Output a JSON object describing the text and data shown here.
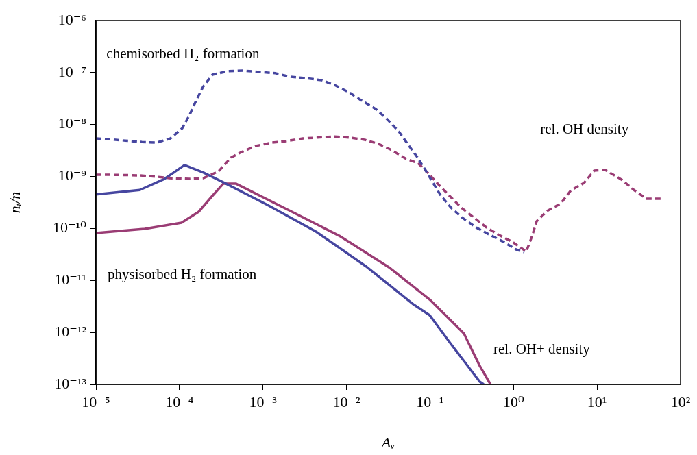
{
  "chart_data": {
    "type": "line",
    "xlabel": "Aᵥ",
    "ylabel": "nᵢ/n",
    "log": "xy",
    "legend": false,
    "xlim": [
      1e-05,
      100
    ],
    "ylim": [
      1e-13,
      1e-06
    ],
    "xticks": [
      {
        "value": 1e-05,
        "label": "10⁻⁵"
      },
      {
        "value": 0.0001,
        "label": "10⁻⁴"
      },
      {
        "value": 0.001,
        "label": "10⁻³"
      },
      {
        "value": 0.01,
        "label": "10⁻²"
      },
      {
        "value": 0.1,
        "label": "10⁻¹"
      },
      {
        "value": 1,
        "label": "10⁰"
      },
      {
        "value": 10,
        "label": "10¹"
      },
      {
        "value": 100,
        "label": "10²"
      }
    ],
    "yticks": [
      {
        "value": 1e-13,
        "label": "10⁻¹³"
      },
      {
        "value": 1e-12,
        "label": "10⁻¹²"
      },
      {
        "value": 1e-11,
        "label": "10⁻¹¹"
      },
      {
        "value": 1e-10,
        "label": "10⁻¹⁰"
      },
      {
        "value": 1e-09,
        "label": "10⁻⁹"
      },
      {
        "value": 1e-08,
        "label": "10⁻⁸"
      },
      {
        "value": 1e-07,
        "label": "10⁻⁷"
      },
      {
        "value": 1e-06,
        "label": "10⁻⁶"
      }
    ],
    "annotations": [
      "chemisorbed H₂ formation",
      "physisorbed H₂ formation",
      "rel. OH density",
      "rel. OH+ density"
    ],
    "series": [
      {
        "color": "#4646a0",
        "line_style": "dashed",
        "x": [
          1e-05,
          1.46e-05,
          2.25e-05,
          3.55e-05,
          5.37e-05,
          7.8e-05,
          0.000108,
          0.000133,
          0.000158,
          0.000191,
          0.000248,
          0.000377,
          0.000581,
          0.000897,
          0.00141,
          0.0021,
          0.0033,
          0.00511,
          0.00745,
          0.0109,
          0.0153,
          0.0223,
          0.0308,
          0.0424,
          0.0542,
          0.0692,
          0.0869,
          0.109,
          0.134,
          0.178,
          0.245,
          0.358,
          0.524,
          0.764,
          1.07,
          1.35
        ],
        "values": [
          5.4e-09,
          5.2e-09,
          4.9e-09,
          4.6e-09,
          4.5e-09,
          5.4e-09,
          8.5e-09,
          1.56e-08,
          2.87e-08,
          5.26e-08,
          9.1e-08,
          1.06e-07,
          1.09e-07,
          1.03e-07,
          9.7e-08,
          8.3e-08,
          7.8e-08,
          7.1e-08,
          5.6e-08,
          4.1e-08,
          2.87e-08,
          2e-08,
          1.26e-08,
          7.3e-09,
          4.2e-09,
          2.45e-09,
          1.38e-09,
          7.5e-10,
          4.35e-10,
          2.52e-10,
          1.6e-10,
          1.04e-10,
          7.5e-11,
          5.5e-11,
          3.95e-11,
          3.5e-11
        ]
      },
      {
        "color": "#9a3c74",
        "line_style": "dashed",
        "x": [
          1e-05,
          1.49e-05,
          3.35e-05,
          5.37e-05,
          7.55e-05,
          0.000131,
          0.000194,
          0.000294,
          0.000414,
          0.00055,
          0.000817,
          0.00129,
          0.00191,
          0.00301,
          0.00448,
          0.00703,
          0.0109,
          0.0165,
          0.0245,
          0.0338,
          0.0521,
          0.0719,
          0.0955,
          0.132,
          0.175,
          0.237,
          0.339,
          0.476,
          0.668,
          0.975,
          1.42,
          1.66,
          1.89,
          2.51,
          3.66,
          4.86,
          6.97,
          9.25,
          12.5,
          19.7,
          27.7,
          38.9,
          58.9
        ],
        "values": [
          1.08e-09,
          1.08e-09,
          1.05e-09,
          9.9e-10,
          9.3e-10,
          9e-10,
          9.3e-10,
          1.26e-09,
          2.31e-09,
          2.94e-09,
          3.87e-09,
          4.5e-09,
          4.8e-09,
          5.4e-09,
          5.6e-09,
          5.9e-09,
          5.6e-09,
          5.1e-09,
          4.2e-09,
          3.3e-09,
          2.17e-09,
          1.81e-09,
          1.15e-09,
          6.5e-10,
          4.1e-10,
          2.52e-10,
          1.6e-10,
          1.04e-10,
          7.5e-11,
          5.5e-11,
          3.6e-11,
          7e-11,
          1.37e-10,
          2.16e-10,
          3e-10,
          5.4e-10,
          7.5e-10,
          1.3e-09,
          1.34e-09,
          8.7e-10,
          5.5e-10,
          3.74e-10,
          3.74e-10
        ]
      },
      {
        "color": "#4646a0",
        "line_style": "solid",
        "x": [
          1e-05,
          3.35e-05,
          6.62e-05,
          0.000115,
          0.000194,
          0.000336,
          0.00113,
          0.00431,
          0.0168,
          0.0643,
          0.099,
          0.178,
          0.394,
          0.44
        ],
        "values": [
          4.5e-10,
          5.5e-10,
          9e-10,
          1.66e-09,
          1.19e-09,
          7.7e-10,
          2.84e-10,
          8.7e-11,
          1.91e-11,
          3.4e-12,
          2.15e-12,
          6e-13,
          1.13e-13,
          1e-13
        ]
      },
      {
        "color": "#9a3c74",
        "line_style": "solid",
        "x": [
          1e-05,
          3.83e-05,
          0.000106,
          0.00017,
          0.000239,
          0.000336,
          0.000472,
          0.00222,
          0.00851,
          0.0331,
          0.099,
          0.255,
          0.394,
          0.53
        ],
        "values": [
          8.2e-11,
          9.8e-11,
          1.29e-10,
          2.1e-10,
          3.97e-10,
          7.3e-10,
          7.3e-10,
          2.1e-10,
          7e-11,
          1.74e-11,
          4.3e-12,
          9.5e-13,
          2.27e-13,
          1e-13
        ]
      }
    ]
  }
}
